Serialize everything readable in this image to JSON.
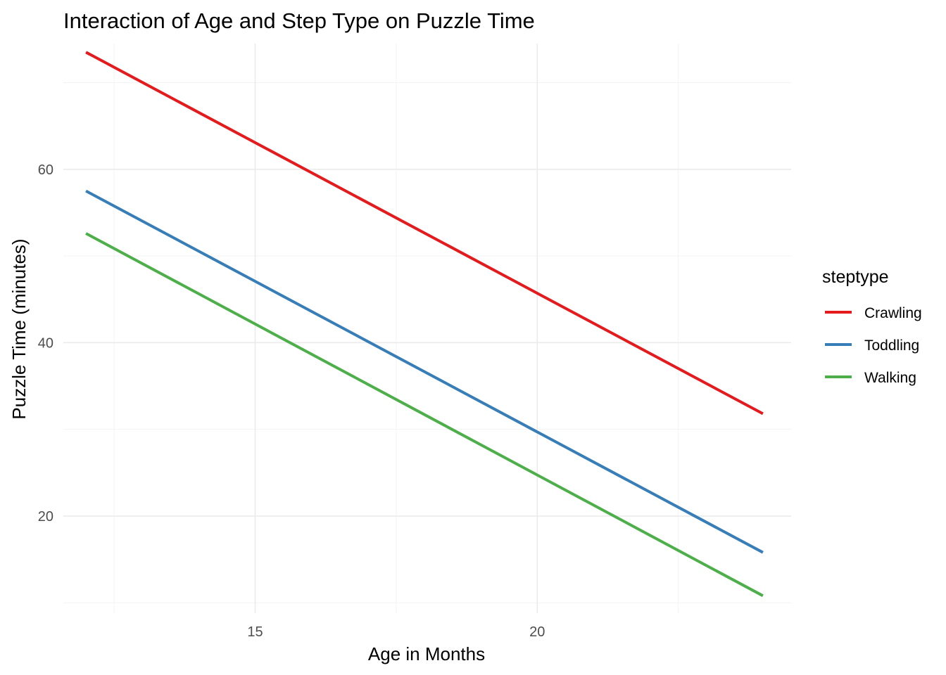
{
  "chart_data": {
    "type": "line",
    "title": "Interaction of Age and Step Type on Puzzle Time",
    "xlabel": "Age in Months",
    "ylabel": "Puzzle Time (minutes)",
    "xlim": [
      11.6,
      24.5
    ],
    "ylim": [
      8.8,
      74.5
    ],
    "x_ticks": [
      15,
      20
    ],
    "x_tick_labels": [
      "15",
      "20"
    ],
    "x_minor_ticks": [
      12.5,
      17.5,
      22.5
    ],
    "y_ticks": [
      20,
      40,
      60
    ],
    "y_tick_labels": [
      "20",
      "40",
      "60"
    ],
    "y_minor_ticks": [
      10,
      30,
      50,
      70
    ],
    "grid": true,
    "legend": {
      "title": "steptype",
      "position": "right"
    },
    "series": [
      {
        "name": "Crawling",
        "color": "#E41A1C",
        "x": [
          12,
          24
        ],
        "y": [
          73.5,
          31.8
        ]
      },
      {
        "name": "Toddling",
        "color": "#377EB8",
        "x": [
          12,
          24
        ],
        "y": [
          57.5,
          15.8
        ]
      },
      {
        "name": "Walking",
        "color": "#4DAF4A",
        "x": [
          12,
          24
        ],
        "y": [
          52.6,
          10.8
        ]
      }
    ]
  }
}
